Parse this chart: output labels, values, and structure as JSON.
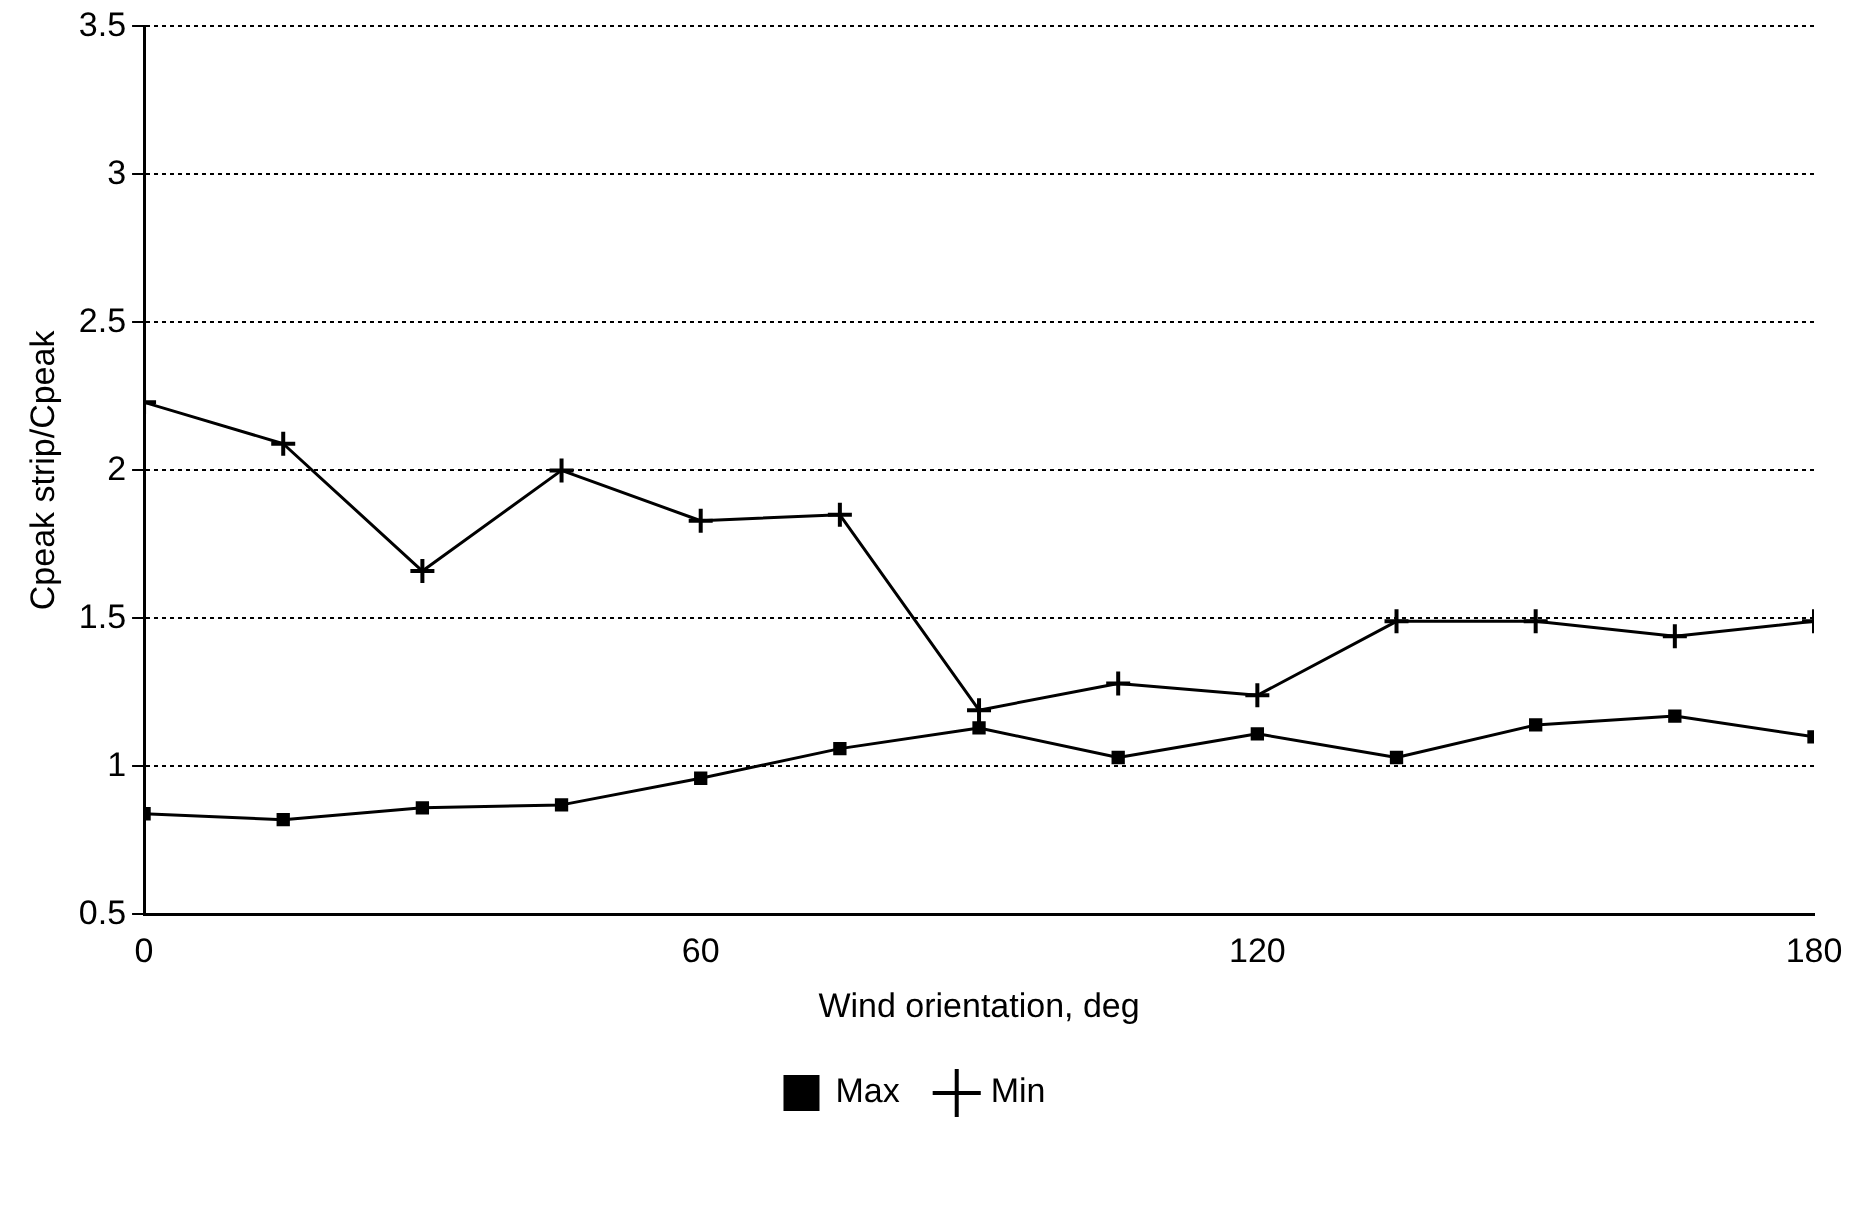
{
  "chart_data": {
    "type": "line",
    "xlabel": "Wind orientation, deg",
    "ylabel": "Cpeak strip/Cpeak",
    "x": [
      0,
      15,
      30,
      45,
      60,
      75,
      90,
      105,
      120,
      135,
      150,
      165,
      180
    ],
    "series": [
      {
        "name": "Max",
        "color": "#000000",
        "marker": "square",
        "values": [
          0.84,
          0.82,
          0.86,
          0.87,
          0.96,
          1.06,
          1.13,
          1.03,
          1.11,
          1.03,
          1.14,
          1.17,
          1.1
        ]
      },
      {
        "name": "Min",
        "color": "#000000",
        "marker": "cross",
        "values": [
          2.23,
          2.09,
          1.66,
          2.0,
          1.83,
          1.85,
          1.19,
          1.28,
          1.24,
          1.49,
          1.49,
          1.44,
          1.49
        ]
      }
    ],
    "xlim": [
      0,
      180
    ],
    "xticks": [
      0,
      60,
      120,
      180
    ],
    "ylim": [
      0.5,
      3.5
    ],
    "yticks": [
      0.5,
      1,
      1.5,
      2,
      2.5,
      3,
      3.5
    ],
    "grid": "y",
    "legend": "bottom"
  }
}
